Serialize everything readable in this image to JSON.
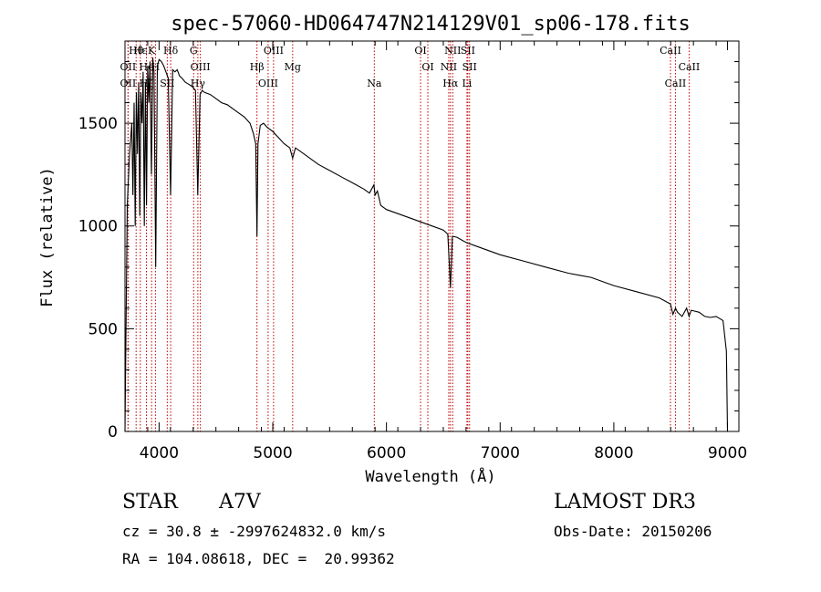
{
  "chart_data": {
    "type": "line",
    "title": "spec-57060-HD064747N214129V01_sp06-178.fits",
    "xlabel": "Wavelength (Å)",
    "ylabel": "Flux (relative)",
    "xlim": [
      3700,
      9100
    ],
    "ylim": [
      0,
      1900
    ],
    "x_ticks": [
      4000,
      5000,
      6000,
      7000,
      8000,
      9000
    ],
    "y_ticks": [
      0,
      500,
      1000,
      1500
    ],
    "series": [
      {
        "name": "flux",
        "x": [
          3700,
          3720,
          3740,
          3760,
          3770,
          3780,
          3790,
          3800,
          3810,
          3820,
          3830,
          3840,
          3850,
          3860,
          3870,
          3880,
          3889,
          3900,
          3910,
          3920,
          3933,
          3945,
          3955,
          3970,
          3985,
          4000,
          4020,
          4040,
          4060,
          4080,
          4101,
          4120,
          4140,
          4160,
          4180,
          4200,
          4230,
          4260,
          4290,
          4320,
          4340,
          4360,
          4380,
          4400,
          4450,
          4500,
          4550,
          4600,
          4650,
          4700,
          4750,
          4800,
          4830,
          4850,
          4861,
          4870,
          4890,
          4920,
          4950,
          5000,
          5050,
          5100,
          5150,
          5175,
          5200,
          5300,
          5400,
          5500,
          5600,
          5700,
          5800,
          5850,
          5890,
          5900,
          5920,
          5950,
          6000,
          6100,
          6200,
          6300,
          6400,
          6500,
          6540,
          6563,
          6580,
          6620,
          6700,
          6800,
          6900,
          7000,
          7200,
          7400,
          7600,
          7700,
          7800,
          7900,
          8000,
          8200,
          8400,
          8498,
          8520,
          8542,
          8560,
          8600,
          8640,
          8662,
          8680,
          8750,
          8800,
          8850,
          8900,
          8960,
          8990,
          9000
        ],
        "y": [
          0,
          1100,
          1350,
          1500,
          1150,
          1600,
          1000,
          1650,
          1350,
          1700,
          1050,
          1650,
          1500,
          1750,
          1000,
          1700,
          1100,
          1780,
          1600,
          1800,
          1250,
          1820,
          1750,
          800,
          1780,
          1810,
          1800,
          1780,
          1750,
          1720,
          1150,
          1760,
          1750,
          1760,
          1730,
          1720,
          1700,
          1690,
          1680,
          1660,
          1150,
          1640,
          1660,
          1650,
          1640,
          1620,
          1600,
          1590,
          1570,
          1550,
          1530,
          1500,
          1450,
          1400,
          950,
          1400,
          1490,
          1500,
          1480,
          1460,
          1430,
          1400,
          1380,
          1330,
          1380,
          1340,
          1300,
          1270,
          1240,
          1210,
          1180,
          1160,
          1200,
          1150,
          1170,
          1100,
          1080,
          1060,
          1040,
          1020,
          1000,
          980,
          960,
          700,
          950,
          945,
          920,
          900,
          880,
          860,
          830,
          800,
          770,
          760,
          750,
          730,
          710,
          680,
          650,
          620,
          570,
          600,
          580,
          560,
          600,
          560,
          590,
          580,
          560,
          555,
          560,
          540,
          390,
          0
        ]
      }
    ],
    "line_markers": [
      {
        "label": "Hθ",
        "wavelength": 3798
      },
      {
        "label": "OII",
        "wavelength": 3727
      },
      {
        "label": "OII",
        "wavelength": 3727
      },
      {
        "label": "Hε",
        "wavelength": 3835
      },
      {
        "label": "He",
        "wavelength": 3889
      },
      {
        "label": "Hζ",
        "wavelength": 3889
      },
      {
        "label": "K",
        "wavelength": 3934
      },
      {
        "label": "H",
        "wavelength": 3968
      },
      {
        "label": "SII",
        "wavelength": 4072
      },
      {
        "label": "Hδ",
        "wavelength": 4102
      },
      {
        "label": "OIII",
        "wavelength": 4363
      },
      {
        "label": "Hγ",
        "wavelength": 4341
      },
      {
        "label": "G",
        "wavelength": 4304
      },
      {
        "label": "Hβ",
        "wavelength": 4861
      },
      {
        "label": "OIII",
        "wavelength": 4959
      },
      {
        "label": "OIII",
        "wavelength": 5007
      },
      {
        "label": "Mg",
        "wavelength": 5175
      },
      {
        "label": "Na",
        "wavelength": 5893
      },
      {
        "label": "OI",
        "wavelength": 6300
      },
      {
        "label": "OI",
        "wavelength": 6364
      },
      {
        "label": "Hα",
        "wavelength": 6563
      },
      {
        "label": "SII",
        "wavelength": 6716
      },
      {
        "label": "NII",
        "wavelength": 6548
      },
      {
        "label": "Li",
        "wavelength": 6708
      },
      {
        "label": "NII",
        "wavelength": 6583
      },
      {
        "label": "SII",
        "wavelength": 6731
      },
      {
        "label": "CaII",
        "wavelength": 8542
      },
      {
        "label": "CaII",
        "wavelength": 8498
      },
      {
        "label": "CaII",
        "wavelength": 8662
      }
    ],
    "line_color": "#c00000"
  },
  "info": {
    "object_class": "STAR",
    "subclass": "A7V",
    "survey": "LAMOST DR3",
    "cz": "cz = 30.8 ± -2997624832.0 km/s",
    "obs_date": "Obs-Date: 20150206",
    "coords": "RA = 104.08618, DEC =  20.99362"
  }
}
